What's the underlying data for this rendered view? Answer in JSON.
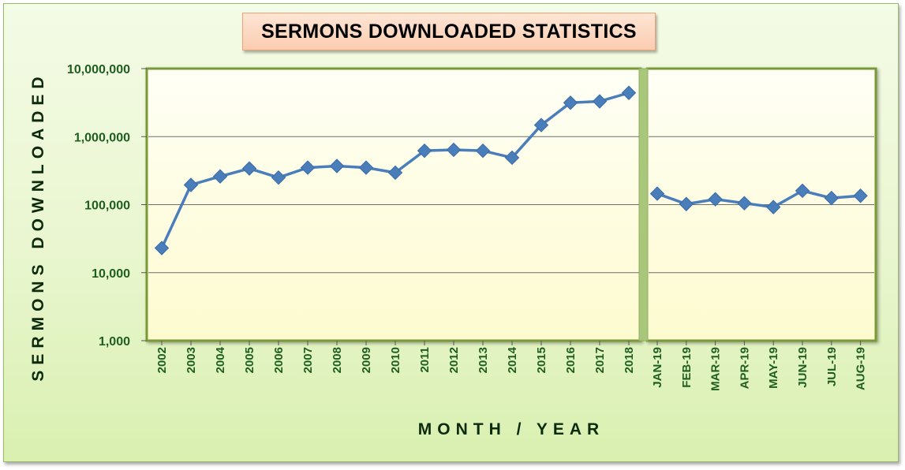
{
  "chart_data": {
    "type": "line",
    "title": "SERMONS DOWNLOADED STATISTICS",
    "xlabel": "MONTH / YEAR",
    "ylabel": "SERMONS DOWNLOADED",
    "yscale": "log",
    "ylim": [
      1000,
      10000000
    ],
    "yticks": [
      "1,000",
      "10,000",
      "100,000",
      "1,000,000",
      "10,000,000"
    ],
    "grid": true,
    "legend": "none",
    "line_color": "#4a7ebb",
    "panels": [
      {
        "name": "",
        "categories": [
          "2002",
          "2003",
          "2004",
          "2005",
          "2006",
          "2007",
          "2008",
          "2009",
          "2010",
          "2011",
          "2012",
          "2013",
          "2014",
          "2015",
          "2016",
          "2017",
          "2018"
        ],
        "values": [
          23000,
          195000,
          260000,
          340000,
          250000,
          350000,
          370000,
          350000,
          295000,
          620000,
          640000,
          620000,
          490000,
          1480000,
          3150000,
          3300000,
          4400000
        ]
      },
      {
        "name": "",
        "categories": [
          "JAN-19",
          "FEB-19",
          "MAR-19",
          "APR-19",
          "MAY-19",
          "JUN-19",
          "JUL-19",
          "AUG-19"
        ],
        "values": [
          145000,
          102000,
          120000,
          105000,
          92000,
          160000,
          125000,
          135000
        ]
      }
    ]
  }
}
